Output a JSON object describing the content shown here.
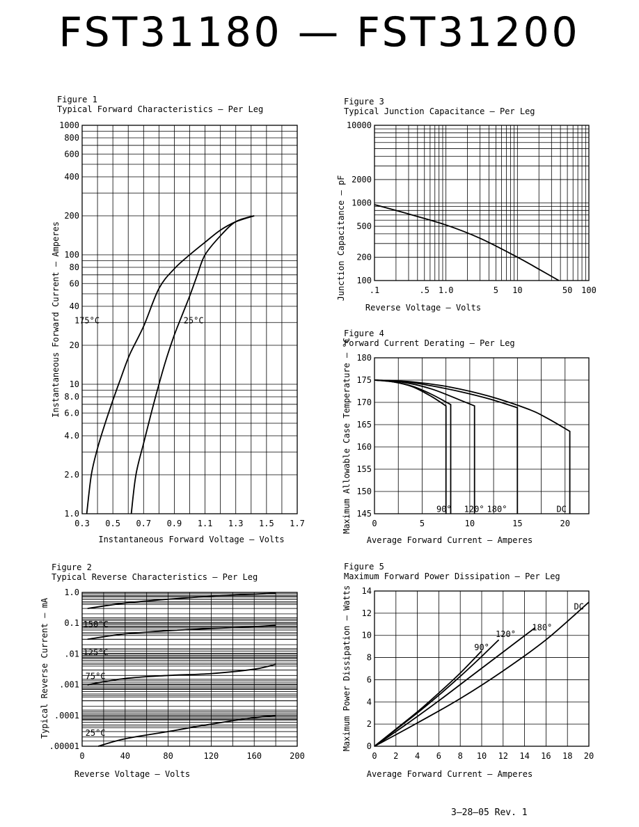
{
  "page": {
    "title": "FST31180 — FST31200",
    "footer": "3–28–05   Rev. 1"
  },
  "figures": {
    "fig1": {
      "number": "Figure 1",
      "caption": "Typical Forward Characteristics — Per Leg"
    },
    "fig2": {
      "number": "Figure 2",
      "caption": "Typical Reverse Characteristics — Per Leg"
    },
    "fig3": {
      "number": "Figure 3",
      "caption": "Typical Junction Capacitance — Per Leg"
    },
    "fig4": {
      "number": "Figure 4",
      "caption": "Forward Current Derating — Per Leg"
    },
    "fig5": {
      "number": "Figure 5",
      "caption": "Maximum Forward Power Dissipation — Per Leg"
    }
  },
  "chart_data": [
    {
      "id": "fig1",
      "type": "line",
      "xlabel": "Instantaneous Forward Voltage — Volts",
      "ylabel": "Instantaneous Forward Current — Amperes",
      "xscale": "linear",
      "yscale": "log",
      "xlim": [
        0.3,
        1.7
      ],
      "ylim": [
        1,
        1000
      ],
      "xticks": [
        0.3,
        0.5,
        0.7,
        0.9,
        1.1,
        1.3,
        1.5,
        1.7
      ],
      "xticklabels": [
        "0.3",
        "0.5",
        "0.7",
        "0.9",
        "1.1",
        "1.3",
        "1.5",
        "1.7"
      ],
      "yticks": [
        1,
        2,
        4,
        6,
        8,
        10,
        20,
        40,
        60,
        80,
        100,
        200,
        400,
        600,
        800,
        1000
      ],
      "yticklabels": [
        "1.0",
        "2.0",
        "4.0",
        "6.0",
        "8.0",
        "10",
        "20",
        "40",
        "60",
        "80",
        "100",
        "200",
        "400",
        "600",
        "800",
        "1000"
      ],
      "grid": true,
      "series": [
        {
          "name": "175°C",
          "label_at": [
            0.25,
            31
          ],
          "x": [
            0.33,
            0.36,
            0.4,
            0.45,
            0.5,
            0.55,
            0.61,
            0.7,
            0.8,
            0.9,
            1.0,
            1.1,
            1.2,
            1.3,
            1.42
          ],
          "y": [
            1,
            2,
            3.2,
            5,
            7.5,
            11,
            17,
            28,
            55,
            78,
            100,
            125,
            155,
            180,
            200
          ]
        },
        {
          "name": "25°C",
          "label_at": [
            0.96,
            31
          ],
          "x": [
            0.62,
            0.65,
            0.7,
            0.75,
            0.8,
            0.85,
            0.9,
            0.95,
            1.0,
            1.05,
            1.1,
            1.2,
            1.3,
            1.42
          ],
          "y": [
            1,
            2,
            3.5,
            6,
            10,
            16,
            24,
            34,
            48,
            70,
            100,
            140,
            180,
            200
          ]
        }
      ]
    },
    {
      "id": "fig2",
      "type": "line",
      "xlabel": "Reverse Voltage — Volts",
      "ylabel": "Typical Reverse Current — mA",
      "xscale": "linear",
      "yscale": "log",
      "xlim": [
        0,
        200
      ],
      "ylim": [
        1e-05,
        1
      ],
      "xticks": [
        0,
        40,
        80,
        120,
        160,
        200
      ],
      "xticklabels": [
        "0",
        "40",
        "80",
        "120",
        "160",
        "200"
      ],
      "yticks": [
        1e-05,
        0.0001,
        0.001,
        0.01,
        0.1,
        1
      ],
      "yticklabels": [
        ".00001",
        ".0001",
        ".001",
        ".01",
        "0.1",
        "1.0"
      ],
      "grid": true,
      "series": [
        {
          "name": "150°C",
          "label_at": [
            1,
            0.09
          ],
          "x": [
            5,
            40,
            80,
            120,
            160,
            180
          ],
          "y": [
            0.3,
            0.45,
            0.6,
            0.75,
            0.88,
            0.95
          ]
        },
        {
          "name": "125°C",
          "label_at": [
            1,
            0.011
          ],
          "x": [
            5,
            40,
            80,
            120,
            160,
            180
          ],
          "y": [
            0.03,
            0.045,
            0.057,
            0.067,
            0.077,
            0.085
          ]
        },
        {
          "name": "75°C",
          "label_at": [
            3,
            0.0019
          ],
          "x": [
            5,
            40,
            80,
            120,
            160,
            180
          ],
          "y": [
            0.001,
            0.0016,
            0.002,
            0.0023,
            0.0032,
            0.0046
          ]
        },
        {
          "name": "25°C",
          "label_at": [
            3,
            2.7e-05
          ],
          "x": [
            15,
            40,
            80,
            120,
            160,
            180
          ],
          "y": [
            1e-05,
            1.75e-05,
            3e-05,
            5.25e-05,
            8.5e-05,
            0.0001
          ]
        }
      ]
    },
    {
      "id": "fig3",
      "type": "line",
      "xlabel": "Reverse Voltage — Volts",
      "ylabel": "Junction Capacitance — pF",
      "xscale": "log",
      "yscale": "log",
      "xlim": [
        0.1,
        100
      ],
      "ylim": [
        100,
        10000
      ],
      "xticks": [
        0.1,
        0.5,
        1,
        5,
        10,
        50,
        100
      ],
      "xticklabels": [
        ".1",
        ".5",
        "1.0",
        "5",
        "10",
        "50",
        "100"
      ],
      "yticks": [
        100,
        200,
        500,
        1000,
        2000,
        10000
      ],
      "yticklabels": [
        "100",
        "200",
        "500",
        "1000",
        "2000",
        "10000"
      ],
      "grid": true,
      "series": [
        {
          "name": "",
          "x": [
            0.1,
            0.3,
            1,
            3,
            10,
            20,
            38
          ],
          "y": [
            950,
            720,
            520,
            350,
            200,
            140,
            100
          ]
        }
      ]
    },
    {
      "id": "fig4",
      "type": "line",
      "xlabel": "Average Forward Current — Amperes",
      "ylabel": "Maximum Allowable Case Temperature — °C",
      "xscale": "linear",
      "yscale": "linear",
      "xlim": [
        0,
        22.5
      ],
      "ylim": [
        145,
        180
      ],
      "xticks": [
        0,
        5,
        10,
        15,
        20
      ],
      "xticklabels": [
        "0",
        "5",
        "10",
        "15",
        "20"
      ],
      "yticks": [
        145,
        150,
        155,
        160,
        165,
        170,
        175,
        180
      ],
      "yticklabels": [
        "145",
        "150",
        "155",
        "160",
        "165",
        "170",
        "175",
        "180"
      ],
      "grid": true,
      "series": [
        {
          "name": "90°",
          "label_at": [
            6.5,
            146
          ],
          "x": [
            0,
            2,
            4,
            6,
            7.5,
            7.5
          ],
          "y": [
            175,
            174.6,
            173.5,
            171.3,
            169.2,
            145
          ]
        },
        {
          "name": "",
          "x": [
            0,
            2,
            4,
            6,
            8,
            8
          ],
          "y": [
            175,
            174.6,
            173.6,
            171.8,
            169.5,
            145
          ]
        },
        {
          "name": "120°",
          "label_at": [
            9.4,
            146
          ],
          "x": [
            0,
            3,
            6,
            9,
            10.5,
            10.5
          ],
          "y": [
            175,
            174.5,
            173,
            170.5,
            169.2,
            145
          ]
        },
        {
          "name": "180°",
          "label_at": [
            11.8,
            146
          ],
          "x": [
            0,
            3,
            6,
            9,
            12,
            15,
            15
          ],
          "y": [
            175,
            174.7,
            173.7,
            172.4,
            170.8,
            168.8,
            145
          ]
        },
        {
          "name": "DC",
          "label_at": [
            19.1,
            146
          ],
          "x": [
            0,
            4,
            8,
            12,
            16,
            18,
            20.5,
            20.5
          ],
          "y": [
            175,
            174.6,
            173.4,
            171.4,
            168.6,
            166.6,
            163.5,
            145
          ]
        }
      ]
    },
    {
      "id": "fig5",
      "type": "line",
      "xlabel": "Average Forward Current — Amperes",
      "ylabel": "Maximum Power Dissipation — Watts",
      "xscale": "linear",
      "yscale": "linear",
      "xlim": [
        0,
        20
      ],
      "ylim": [
        0,
        14
      ],
      "xticks": [
        0,
        2,
        4,
        6,
        8,
        10,
        12,
        14,
        16,
        18,
        20
      ],
      "xticklabels": [
        "0",
        "2",
        "4",
        "6",
        "8",
        "10",
        "12",
        "14",
        "16",
        "18",
        "20"
      ],
      "yticks": [
        0,
        2,
        4,
        6,
        8,
        10,
        12,
        14
      ],
      "yticklabels": [
        "0",
        "2",
        "4",
        "6",
        "8",
        "10",
        "12",
        "14"
      ],
      "grid": true,
      "series": [
        {
          "name": "90°",
          "label_at": [
            9.3,
            8.9
          ],
          "x": [
            0,
            2,
            4,
            6,
            8,
            10
          ],
          "y": [
            0,
            1.55,
            3.1,
            4.8,
            6.6,
            8.6
          ]
        },
        {
          "name": "120°",
          "label_at": [
            11.3,
            10.1
          ],
          "x": [
            0,
            2,
            4,
            6,
            8,
            10,
            11.6
          ],
          "y": [
            0,
            1.5,
            3.0,
            4.6,
            6.3,
            8.1,
            9.6
          ]
        },
        {
          "name": "180°",
          "label_at": [
            14.7,
            10.7
          ],
          "x": [
            0,
            3,
            6,
            9,
            12,
            15
          ],
          "y": [
            0,
            2.0,
            4.1,
            6.3,
            8.5,
            10.7
          ]
        },
        {
          "name": "DC",
          "label_at": [
            18.6,
            12.6
          ],
          "x": [
            0,
            4,
            8,
            12,
            16,
            20
          ],
          "y": [
            0,
            2.1,
            4.3,
            6.8,
            9.6,
            13.0
          ]
        }
      ]
    }
  ]
}
